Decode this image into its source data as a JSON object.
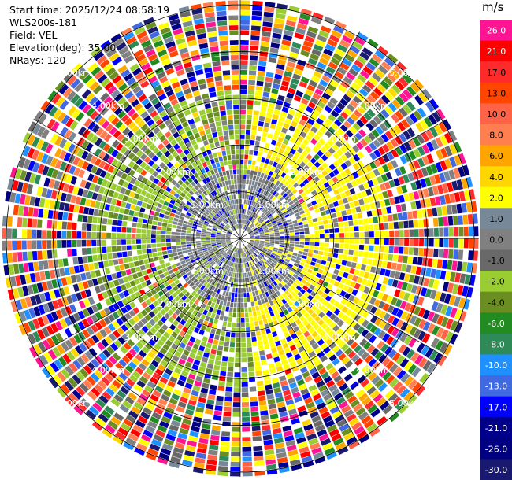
{
  "header": {
    "start_time": "Start time: 2025/12/24 08:58:19",
    "station": "WLS200s-181",
    "field": "Field: VEL",
    "elevation": "Elevation(deg): 35.00",
    "nrays": "NRays: 120"
  },
  "colorbar": {
    "unit": "m/s",
    "levels": [
      {
        "label": "26.0",
        "color": "#ff1493"
      },
      {
        "label": "21.0",
        "color": "#ff0000"
      },
      {
        "label": "17.0",
        "color": "#ff2a2a"
      },
      {
        "label": "13.0",
        "color": "#ff4500"
      },
      {
        "label": "10.0",
        "color": "#ff6347"
      },
      {
        "label": "8.0",
        "color": "#ff7f50"
      },
      {
        "label": "6.0",
        "color": "#ffa500"
      },
      {
        "label": "4.0",
        "color": "#ffd700"
      },
      {
        "label": "2.0",
        "color": "#ffff00"
      },
      {
        "label": "1.0",
        "color": "#778899"
      },
      {
        "label": "0.0",
        "color": "#808080"
      },
      {
        "label": "-1.0",
        "color": "#696969"
      },
      {
        "label": "-2.0",
        "color": "#9acd32"
      },
      {
        "label": "-4.0",
        "color": "#6b8e23"
      },
      {
        "label": "-6.0",
        "color": "#228b22"
      },
      {
        "label": "-8.0",
        "color": "#2e8b57"
      },
      {
        "label": "-10.0",
        "color": "#1e90ff"
      },
      {
        "label": "-13.0",
        "color": "#4169e1"
      },
      {
        "label": "-17.0",
        "color": "#0000ff"
      },
      {
        "label": "-21.0",
        "color": "#00008b"
      },
      {
        "label": "-26.0",
        "color": "#000080"
      },
      {
        "label": "-30.0",
        "color": "#191970"
      }
    ]
  },
  "chart_data": {
    "type": "heatmap",
    "projection": "polar PPI",
    "field": "VEL",
    "nrays": 120,
    "range_rings_km": [
      1.0,
      2.0,
      3.0,
      4.0,
      5.0
    ],
    "range_labels": [
      "1.00km",
      "2.00km",
      "3.00km",
      "4.00km",
      "5.00km"
    ],
    "range_label_positions": [
      "upper-left",
      "upper-right",
      "lower-left",
      "lower-right"
    ],
    "max_range_km": 5.0,
    "grid": true,
    "palette": [
      "#ff1493",
      "#ff0000",
      "#ff2a2a",
      "#ff4500",
      "#ff6347",
      "#ff7f50",
      "#ffa500",
      "#ffd700",
      "#ffff00",
      "#778899",
      "#808080",
      "#696969",
      "#9acd32",
      "#6b8e23",
      "#228b22",
      "#2e8b57",
      "#1e90ff",
      "#4169e1",
      "#0000ff",
      "#00008b",
      "#000080",
      "#191970"
    ]
  }
}
